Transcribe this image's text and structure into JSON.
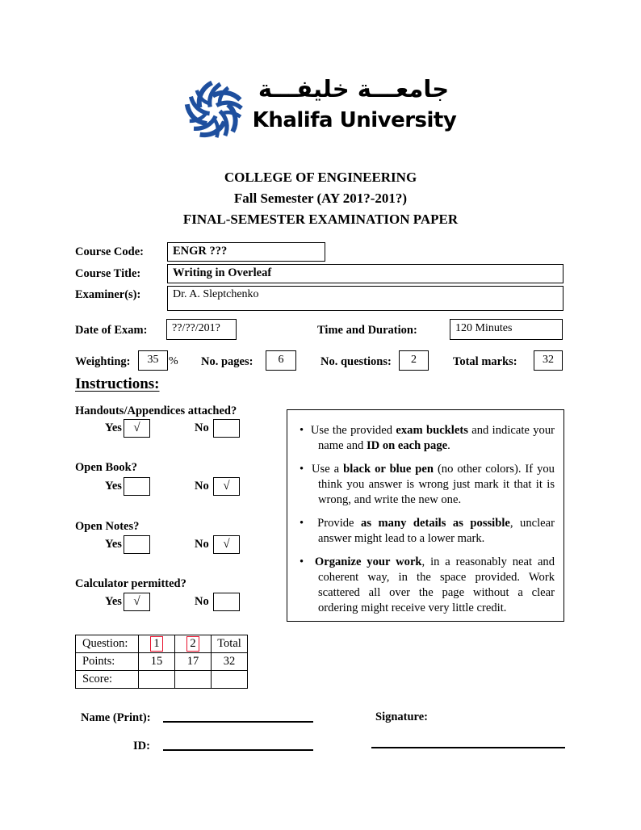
{
  "logo": {
    "arabic": "جامعـــة خليفـــة",
    "english": "Khalifa University",
    "brand_blue": "#1e4f9e"
  },
  "header": {
    "line1": "COLLEGE OF ENGINEERING",
    "line2": "Fall Semester (AY 201?-201?)",
    "line3": "FINAL-SEMESTER EXAMINATION PAPER"
  },
  "course_info": {
    "course_code_label": "Course Code:",
    "course_code": "ENGR ???",
    "course_title_label": "Course Title:",
    "course_title": "Writing in Overleaf",
    "examiners_label": "Examiner(s):",
    "examiners": "Dr. A. Sleptchenko"
  },
  "exam_info": {
    "date_label": "Date of Exam:",
    "date": "??/??/201?",
    "time_label": "Time and Duration:",
    "time": "120 Minutes",
    "weighting_label": "Weighting:",
    "weighting": "35",
    "percent_sign": "%",
    "pages_label": "No. pages:",
    "pages": "6",
    "questions_label": "No. questions:",
    "questions": "2",
    "marks_label": "Total marks:",
    "marks": "32"
  },
  "instructions": {
    "heading": "Instructions:",
    "yes_label": "Yes",
    "no_label": "No",
    "check_mark": "√",
    "items": [
      {
        "label": "Handouts/Appendices attached?",
        "yes": "√",
        "no": ""
      },
      {
        "label": "Open Book?",
        "yes": "",
        "no": "√"
      },
      {
        "label": "Open Notes?",
        "yes": "",
        "no": "√"
      },
      {
        "label": "Calculator permitted?",
        "yes": "√",
        "no": ""
      }
    ],
    "bullets": [
      [
        {
          "t": "Use the provided ",
          "b": false
        },
        {
          "t": "exam bucklets",
          "b": true
        },
        {
          "t": " and indicate your name and ",
          "b": false
        },
        {
          "t": "ID on each page",
          "b": true
        },
        {
          "t": ".",
          "b": false
        }
      ],
      [
        {
          "t": "Use a ",
          "b": false
        },
        {
          "t": "black or blue pen",
          "b": true
        },
        {
          "t": " (no other colors). If you think you answer is wrong just mark it that it is wrong, and write the new one.",
          "b": false
        }
      ],
      [
        {
          "t": "Provide ",
          "b": false
        },
        {
          "t": "as many details as possible",
          "b": true
        },
        {
          "t": ", unclear answer might lead to a lower mark.",
          "b": false
        }
      ],
      [
        {
          "t": "Organize your work",
          "b": true
        },
        {
          "t": ", in a reasonably neat and coherent way, in the space provided. Work scattered all over the page without a clear ordering might receive very little credit.",
          "b": false
        }
      ]
    ]
  },
  "score_table": {
    "link_color": "#e8112d",
    "rows": [
      [
        "Question:",
        "1",
        "2",
        "Total"
      ],
      [
        "Points:",
        "15",
        "17",
        "32"
      ],
      [
        "Score:",
        "",
        "",
        ""
      ]
    ]
  },
  "signature_block": {
    "name_label": "Name (Print):",
    "signature_label": "Signature:",
    "id_label": "ID:"
  }
}
